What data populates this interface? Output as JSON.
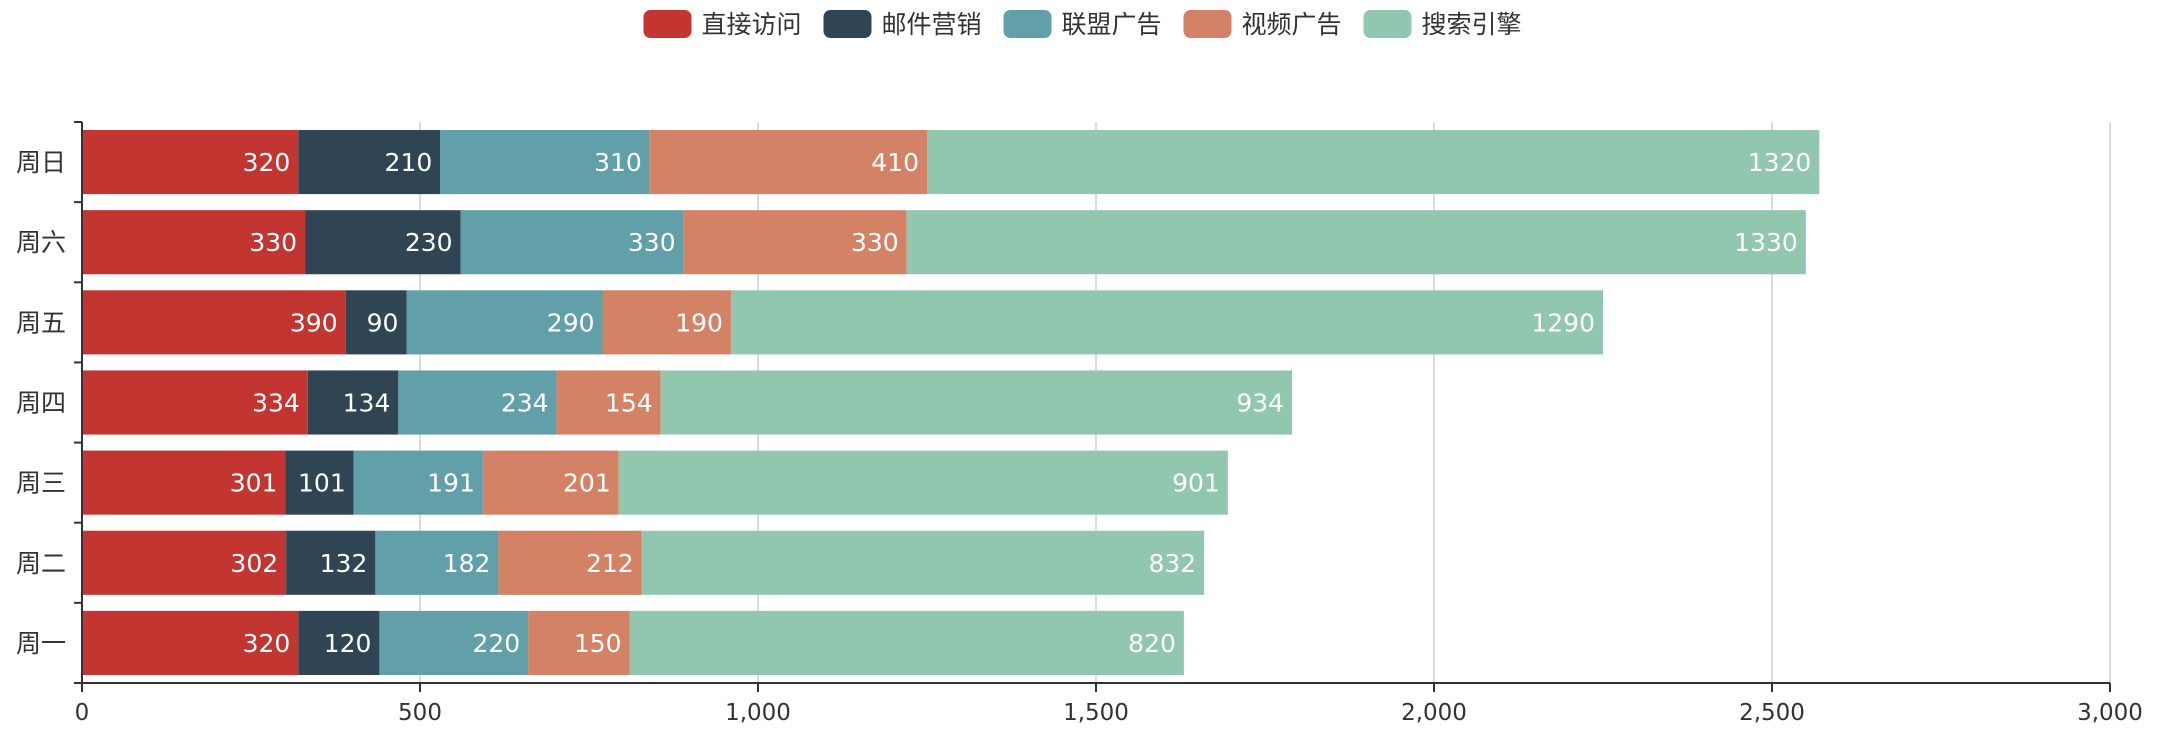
{
  "chart_data": {
    "type": "bar",
    "orientation": "horizontal",
    "stacked": true,
    "title": "",
    "xlabel": "",
    "ylabel": "",
    "categories": [
      "周一",
      "周二",
      "周三",
      "周四",
      "周五",
      "周六",
      "周日"
    ],
    "series": [
      {
        "name": "直接访问",
        "color": "#c23531",
        "values": [
          320,
          302,
          301,
          334,
          390,
          330,
          320
        ]
      },
      {
        "name": "邮件营销",
        "color": "#2f4554",
        "values": [
          120,
          132,
          101,
          134,
          90,
          230,
          210
        ]
      },
      {
        "name": "联盟广告",
        "color": "#61a0a8",
        "values": [
          220,
          182,
          191,
          234,
          290,
          330,
          310
        ]
      },
      {
        "name": "视频广告",
        "color": "#d48265",
        "values": [
          150,
          212,
          201,
          154,
          190,
          330,
          410
        ]
      },
      {
        "name": "搜索引擎",
        "color": "#91c7ae",
        "values": [
          820,
          832,
          901,
          934,
          1290,
          1330,
          1320
        ]
      }
    ],
    "xlim": [
      0,
      3000
    ],
    "xticks": [
      0,
      500,
      1000,
      1500,
      2000,
      2500,
      3000
    ],
    "xtick_labels": [
      "0",
      "500",
      "1,000",
      "1,500",
      "2,000",
      "2,500",
      "3,000"
    ],
    "grid": true,
    "legend_position": "top-center",
    "data_labels": true
  }
}
